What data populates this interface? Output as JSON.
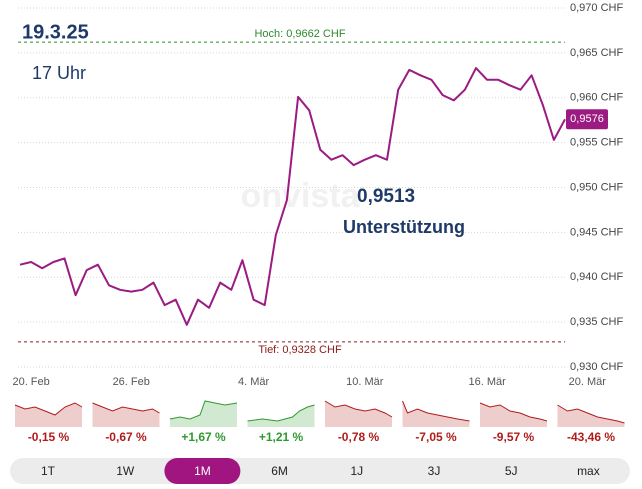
{
  "header": {
    "date": "19.3.25",
    "time": "17 Uhr"
  },
  "chart_data": {
    "type": "line",
    "watermark": "onvista",
    "categories": [
      null,
      "20. Feb",
      null,
      null,
      null,
      null,
      null,
      null,
      null,
      null,
      "26. Feb",
      null,
      null,
      null,
      null,
      null,
      null,
      null,
      null,
      null,
      null,
      "4. Mär",
      null,
      null,
      null,
      null,
      null,
      null,
      null,
      null,
      null,
      "10. Mär",
      null,
      null,
      null,
      null,
      null,
      null,
      null,
      null,
      null,
      null,
      "16. Mär",
      null,
      null,
      null,
      null,
      null,
      null,
      null,
      null,
      "20. Mär"
    ],
    "series": [
      {
        "color": "#9b1b82",
        "values": [
          0.9414,
          0.9417,
          0.941,
          0.9417,
          0.9421,
          0.938,
          0.9408,
          0.9414,
          0.9391,
          0.9386,
          0.9384,
          0.9386,
          0.9394,
          0.9369,
          0.9375,
          0.9347,
          0.9375,
          0.9366,
          0.9394,
          0.9386,
          0.9419,
          0.9375,
          0.9369,
          0.9447,
          0.9486,
          0.9601,
          0.9586,
          0.9542,
          0.9531,
          0.9536,
          0.9525,
          0.9531,
          0.9536,
          0.9531,
          0.9609,
          0.9631,
          0.9625,
          0.962,
          0.9603,
          0.9597,
          0.9609,
          0.9633,
          0.962,
          0.962,
          0.9614,
          0.9609,
          0.9625,
          0.9592,
          0.9553,
          0.9576,
          null,
          null
        ]
      }
    ],
    "ylim": [
      0.93,
      0.97
    ],
    "yticks": [
      {
        "value": 0.93,
        "label": "0,930 CHF"
      },
      {
        "value": 0.935,
        "label": "0,935 CHF"
      },
      {
        "value": 0.94,
        "label": "0,940 CHF"
      },
      {
        "value": 0.945,
        "label": "0,945 CHF"
      },
      {
        "value": 0.95,
        "label": "0,950 CHF"
      },
      {
        "value": 0.955,
        "label": "0,955 CHF"
      },
      {
        "value": 0.96,
        "label": "0,960 CHF"
      },
      {
        "value": 0.965,
        "label": "0,965 CHF"
      },
      {
        "value": 0.97,
        "label": "0,970 CHF"
      }
    ],
    "grid": true,
    "high": {
      "value": 0.9662,
      "label": "Hoch: 0,9662 CHF",
      "color": "#2e8b2e"
    },
    "low": {
      "value": 0.9328,
      "label": "Tief: 0,9328 CHF",
      "color": "#8b1a1a"
    },
    "last": {
      "value": 0.9576,
      "label": "0,9576"
    },
    "support": {
      "value": 0.9513,
      "label": "0,9513",
      "text": "Unterstützung"
    }
  },
  "performance": {
    "positive_color": "#2e9a2e",
    "negative_color": "#b01c1c",
    "values": [
      -0.15,
      -0.67,
      1.67,
      1.21,
      -0.78,
      -7.05,
      -9.57,
      -43.46
    ],
    "value_labels": [
      "-0,15 %",
      "-0,67 %",
      "+1,67 %",
      "+1,21 %",
      "-0,78 %",
      "-7,05 %",
      "-9,57 %",
      "-43,46 %"
    ]
  },
  "periods": {
    "buttons": [
      "1T",
      "1W",
      "1M",
      "6M",
      "1J",
      "3J",
      "5J",
      "max"
    ],
    "selected": 2
  }
}
